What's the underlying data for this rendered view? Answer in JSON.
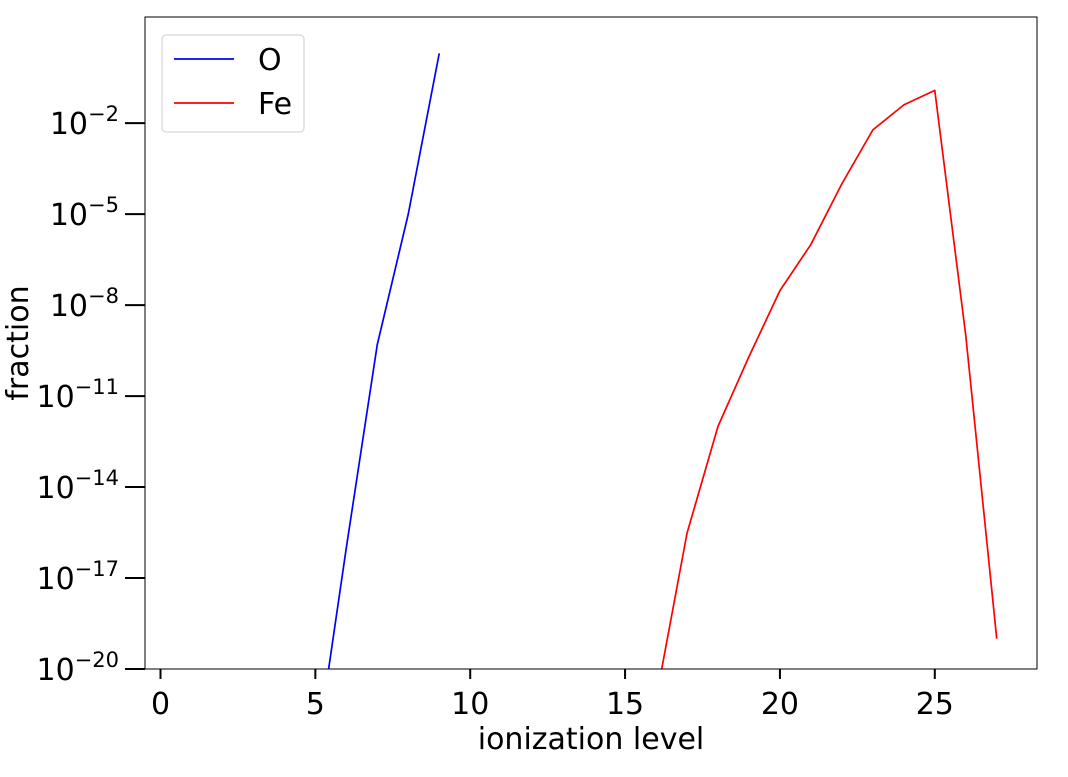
{
  "chart_data": {
    "type": "line",
    "title": "",
    "xlabel": "ionization level",
    "ylabel": "fraction",
    "xlim": [
      -0.5,
      28.3
    ],
    "ylim_log10": [
      -20,
      1.5
    ],
    "yscale": "log",
    "x_ticks": [
      0,
      5,
      10,
      15,
      20,
      25
    ],
    "y_ticks": [
      {
        "base": "10",
        "exp": "−20",
        "log": -20
      },
      {
        "base": "10",
        "exp": "−17",
        "log": -17
      },
      {
        "base": "10",
        "exp": "−14",
        "log": -14
      },
      {
        "base": "10",
        "exp": "−11",
        "log": -11
      },
      {
        "base": "10",
        "exp": "−8",
        "log": -8
      },
      {
        "base": "10",
        "exp": "−5",
        "log": -5
      },
      {
        "base": "10",
        "exp": "−2",
        "log": -2
      }
    ],
    "legend_position": "top-left",
    "grid": false,
    "series": [
      {
        "name": "O",
        "color": "#0000ff",
        "x": [
          5,
          6,
          7,
          8,
          9
        ],
        "y": [
          "1e-23",
          "1e-16",
          "5e-10",
          "1e-5",
          "2e0"
        ]
      },
      {
        "name": "Fe",
        "color": "#ff0000",
        "x": [
          16,
          17,
          18,
          19,
          20,
          21,
          22,
          23,
          24,
          25,
          26,
          27
        ],
        "y": [
          "1e-21",
          "3e-16",
          "1e-12",
          "2e-10",
          "3e-8",
          "1e-6",
          "1e-4",
          "6e-3",
          "4e-2",
          "1.2e-1",
          "1e-9",
          "1e-19"
        ]
      }
    ]
  }
}
